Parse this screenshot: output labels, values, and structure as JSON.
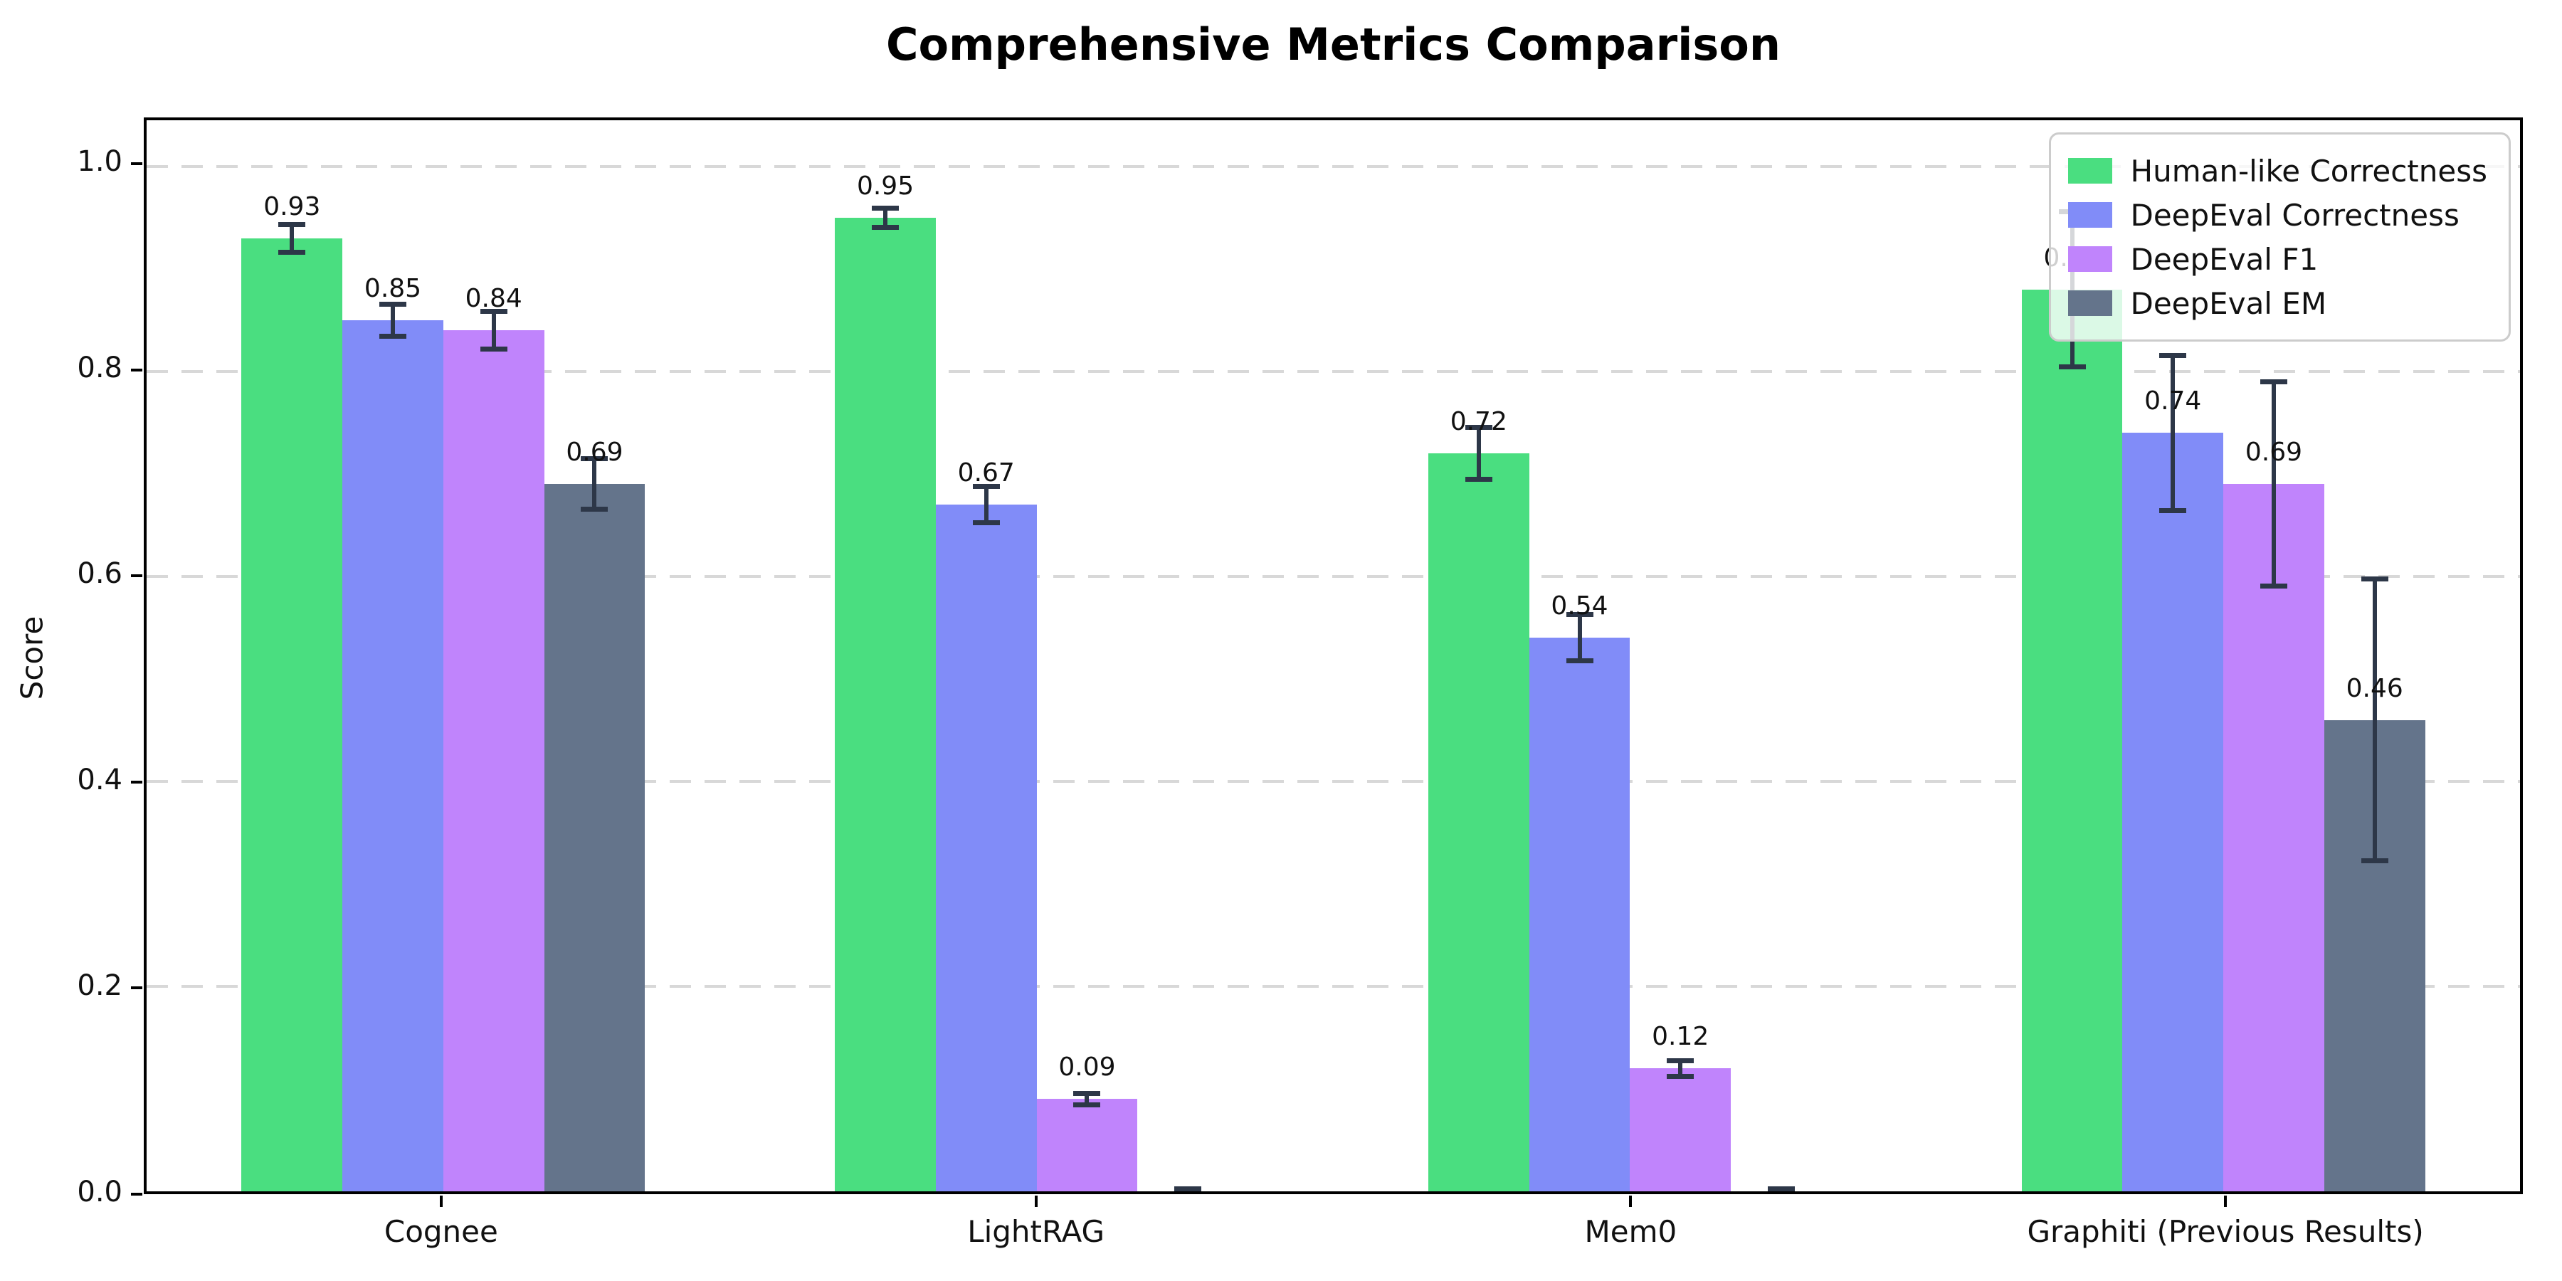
{
  "chart_data": {
    "type": "bar",
    "title": "Comprehensive Metrics Comparison",
    "xlabel": "",
    "ylabel": "Score",
    "ylim": [
      0,
      1.045
    ],
    "yticks": [
      0.0,
      0.2,
      0.4,
      0.6,
      0.8,
      1.0
    ],
    "grid": "horizontal-dashed",
    "background": "#ffffff",
    "error_bar_color": "#2d3748",
    "legend": {
      "position": "upper-right",
      "entries": [
        "Human-like Correctness",
        "DeepEval Correctness",
        "DeepEval F1",
        "DeepEval EM"
      ]
    },
    "categories": [
      "Cognee",
      "LightRAG",
      "Mem0",
      "Graphiti (Previous Results)"
    ],
    "series": [
      {
        "name": "Human-like Correctness",
        "color": "#4ade80",
        "values": [
          0.93,
          0.95,
          0.72,
          0.88
        ],
        "errors": [
          0.016,
          0.012,
          0.028,
          0.078
        ],
        "bar_labels": [
          "0.93",
          "0.95",
          "0.72",
          "0.88"
        ]
      },
      {
        "name": "DeepEval Correctness",
        "color": "#818cf8",
        "values": [
          0.85,
          0.67,
          0.54,
          0.74
        ],
        "errors": [
          0.018,
          0.02,
          0.025,
          0.078
        ],
        "bar_labels": [
          "0.85",
          "0.67",
          "0.54",
          "0.74"
        ]
      },
      {
        "name": "DeepEval F1",
        "color": "#c084fc",
        "values": [
          0.84,
          0.09,
          0.12,
          0.69
        ],
        "errors": [
          0.021,
          0.008,
          0.01,
          0.102
        ],
        "bar_labels": [
          "0.84",
          "0.09",
          "0.12",
          "0.69"
        ]
      },
      {
        "name": "DeepEval EM",
        "color": "#64748b",
        "values": [
          0.69,
          0.0,
          0.0,
          0.46
        ],
        "errors": [
          0.027,
          0.005,
          0.005,
          0.14
        ],
        "bar_labels": [
          "0.69",
          "",
          "",
          "0.46"
        ]
      }
    ]
  }
}
